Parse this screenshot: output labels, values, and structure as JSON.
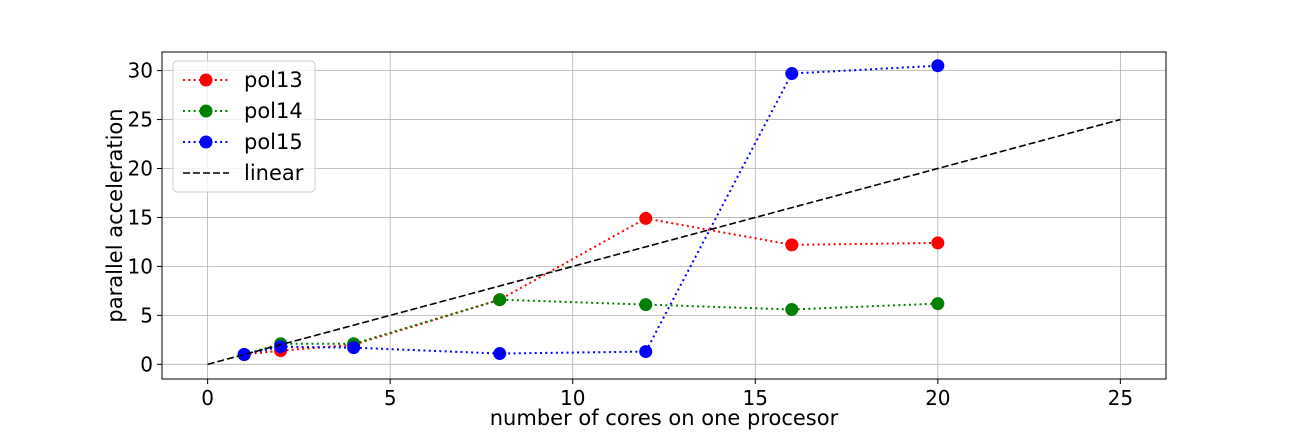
{
  "chart_data": {
    "type": "line",
    "xlabel": "number of cores on one procesor",
    "ylabel": "parallel acceleration",
    "xlim": [
      -1.25,
      26.25
    ],
    "ylim": [
      -1.5,
      31.9
    ],
    "xticks": [
      0,
      5,
      10,
      15,
      20,
      25
    ],
    "yticks": [
      0,
      5,
      10,
      15,
      20,
      25,
      30
    ],
    "grid": true,
    "legend_position": "top-left",
    "series": [
      {
        "name": "pol13",
        "color": "#ff0000",
        "style": "dotted",
        "marker": "circle",
        "x": [
          1,
          2,
          4,
          8,
          12,
          16,
          20
        ],
        "y": [
          1.0,
          1.4,
          2.0,
          6.6,
          14.9,
          12.2,
          12.4
        ]
      },
      {
        "name": "pol14",
        "color": "#008000",
        "style": "dotted",
        "marker": "circle",
        "x": [
          1,
          2,
          4,
          8,
          12,
          16,
          20
        ],
        "y": [
          1.0,
          2.1,
          2.1,
          6.6,
          6.1,
          5.6,
          6.2
        ]
      },
      {
        "name": "pol15",
        "color": "#0000ff",
        "style": "dotted",
        "marker": "circle",
        "x": [
          1,
          2,
          4,
          8,
          12,
          16,
          20
        ],
        "y": [
          1.0,
          1.8,
          1.7,
          1.1,
          1.3,
          29.7,
          30.5
        ]
      },
      {
        "name": "linear",
        "color": "#000000",
        "style": "dashed",
        "marker": "none",
        "x": [
          0,
          25
        ],
        "y": [
          0,
          25
        ]
      }
    ]
  }
}
